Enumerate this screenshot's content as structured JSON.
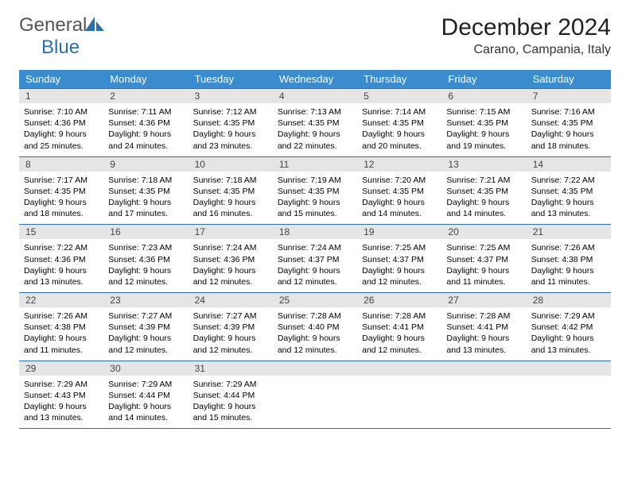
{
  "logo": {
    "textGeneral": "General",
    "textBlue": "Blue"
  },
  "title": "December 2024",
  "location": "Carano, Campania, Italy",
  "colors": {
    "headerBg": "#3a8cce",
    "headerText": "#ffffff",
    "dayNumBg": "#e5e5e5",
    "borderColor": "#2e6ea6",
    "logoBlue": "#2e6ea6"
  },
  "dayNames": [
    "Sunday",
    "Monday",
    "Tuesday",
    "Wednesday",
    "Thursday",
    "Friday",
    "Saturday"
  ],
  "weeks": [
    [
      {
        "num": "1",
        "sunrise": "7:10 AM",
        "sunset": "4:36 PM",
        "dh": "9",
        "dm": "25"
      },
      {
        "num": "2",
        "sunrise": "7:11 AM",
        "sunset": "4:36 PM",
        "dh": "9",
        "dm": "24"
      },
      {
        "num": "3",
        "sunrise": "7:12 AM",
        "sunset": "4:35 PM",
        "dh": "9",
        "dm": "23"
      },
      {
        "num": "4",
        "sunrise": "7:13 AM",
        "sunset": "4:35 PM",
        "dh": "9",
        "dm": "22"
      },
      {
        "num": "5",
        "sunrise": "7:14 AM",
        "sunset": "4:35 PM",
        "dh": "9",
        "dm": "20"
      },
      {
        "num": "6",
        "sunrise": "7:15 AM",
        "sunset": "4:35 PM",
        "dh": "9",
        "dm": "19"
      },
      {
        "num": "7",
        "sunrise": "7:16 AM",
        "sunset": "4:35 PM",
        "dh": "9",
        "dm": "18"
      }
    ],
    [
      {
        "num": "8",
        "sunrise": "7:17 AM",
        "sunset": "4:35 PM",
        "dh": "9",
        "dm": "18"
      },
      {
        "num": "9",
        "sunrise": "7:18 AM",
        "sunset": "4:35 PM",
        "dh": "9",
        "dm": "17"
      },
      {
        "num": "10",
        "sunrise": "7:18 AM",
        "sunset": "4:35 PM",
        "dh": "9",
        "dm": "16"
      },
      {
        "num": "11",
        "sunrise": "7:19 AM",
        "sunset": "4:35 PM",
        "dh": "9",
        "dm": "15"
      },
      {
        "num": "12",
        "sunrise": "7:20 AM",
        "sunset": "4:35 PM",
        "dh": "9",
        "dm": "14"
      },
      {
        "num": "13",
        "sunrise": "7:21 AM",
        "sunset": "4:35 PM",
        "dh": "9",
        "dm": "14"
      },
      {
        "num": "14",
        "sunrise": "7:22 AM",
        "sunset": "4:35 PM",
        "dh": "9",
        "dm": "13"
      }
    ],
    [
      {
        "num": "15",
        "sunrise": "7:22 AM",
        "sunset": "4:36 PM",
        "dh": "9",
        "dm": "13"
      },
      {
        "num": "16",
        "sunrise": "7:23 AM",
        "sunset": "4:36 PM",
        "dh": "9",
        "dm": "12"
      },
      {
        "num": "17",
        "sunrise": "7:24 AM",
        "sunset": "4:36 PM",
        "dh": "9",
        "dm": "12"
      },
      {
        "num": "18",
        "sunrise": "7:24 AM",
        "sunset": "4:37 PM",
        "dh": "9",
        "dm": "12"
      },
      {
        "num": "19",
        "sunrise": "7:25 AM",
        "sunset": "4:37 PM",
        "dh": "9",
        "dm": "12"
      },
      {
        "num": "20",
        "sunrise": "7:25 AM",
        "sunset": "4:37 PM",
        "dh": "9",
        "dm": "11"
      },
      {
        "num": "21",
        "sunrise": "7:26 AM",
        "sunset": "4:38 PM",
        "dh": "9",
        "dm": "11"
      }
    ],
    [
      {
        "num": "22",
        "sunrise": "7:26 AM",
        "sunset": "4:38 PM",
        "dh": "9",
        "dm": "11"
      },
      {
        "num": "23",
        "sunrise": "7:27 AM",
        "sunset": "4:39 PM",
        "dh": "9",
        "dm": "12"
      },
      {
        "num": "24",
        "sunrise": "7:27 AM",
        "sunset": "4:39 PM",
        "dh": "9",
        "dm": "12"
      },
      {
        "num": "25",
        "sunrise": "7:28 AM",
        "sunset": "4:40 PM",
        "dh": "9",
        "dm": "12"
      },
      {
        "num": "26",
        "sunrise": "7:28 AM",
        "sunset": "4:41 PM",
        "dh": "9",
        "dm": "12"
      },
      {
        "num": "27",
        "sunrise": "7:28 AM",
        "sunset": "4:41 PM",
        "dh": "9",
        "dm": "13"
      },
      {
        "num": "28",
        "sunrise": "7:29 AM",
        "sunset": "4:42 PM",
        "dh": "9",
        "dm": "13"
      }
    ],
    [
      {
        "num": "29",
        "sunrise": "7:29 AM",
        "sunset": "4:43 PM",
        "dh": "9",
        "dm": "13"
      },
      {
        "num": "30",
        "sunrise": "7:29 AM",
        "sunset": "4:44 PM",
        "dh": "9",
        "dm": "14"
      },
      {
        "num": "31",
        "sunrise": "7:29 AM",
        "sunset": "4:44 PM",
        "dh": "9",
        "dm": "15"
      },
      null,
      null,
      null,
      null
    ]
  ],
  "labels": {
    "sunrise": "Sunrise: ",
    "sunset": "Sunset: ",
    "daylight1": "Daylight: ",
    "daylight2": " hours and ",
    "daylight3": " minutes."
  }
}
